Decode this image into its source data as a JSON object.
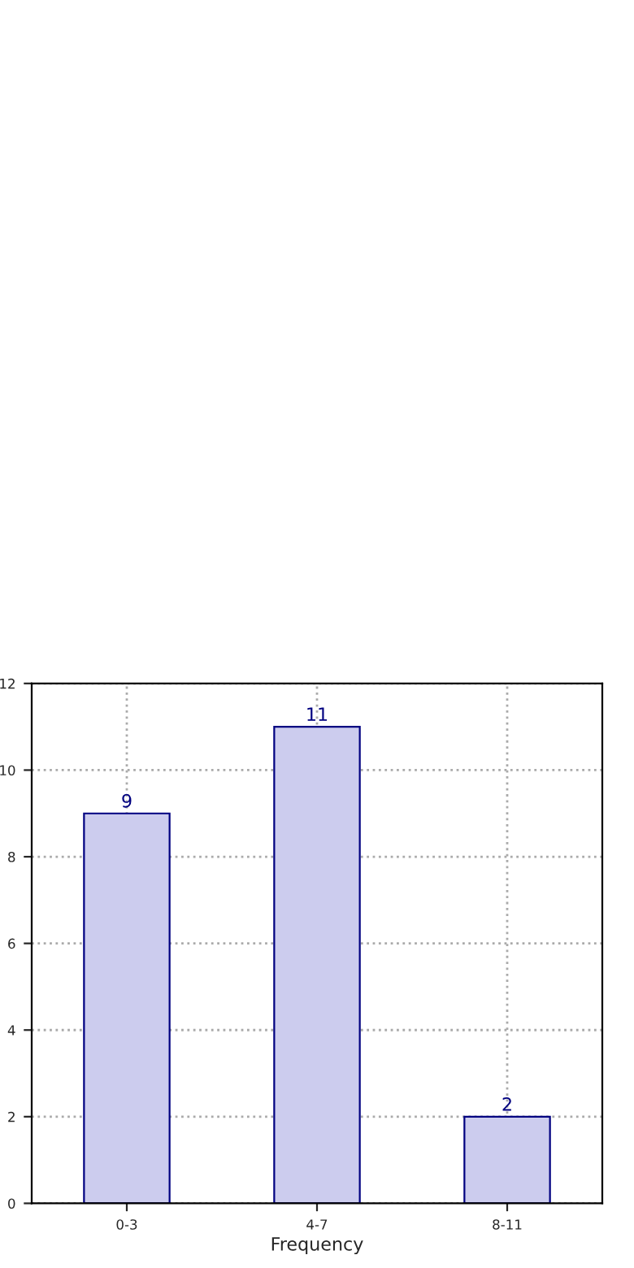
{
  "chart_data": {
    "type": "bar",
    "xlabel": "Frequency",
    "categories": [
      "0-3",
      "4-7",
      "8-11"
    ],
    "values": [
      9,
      11,
      2
    ],
    "color": "#ccccee",
    "ylim": [
      0,
      12
    ],
    "yticks": [
      0,
      2,
      4,
      6,
      8,
      10,
      12
    ],
    "grid": true,
    "data_labels": true
  }
}
